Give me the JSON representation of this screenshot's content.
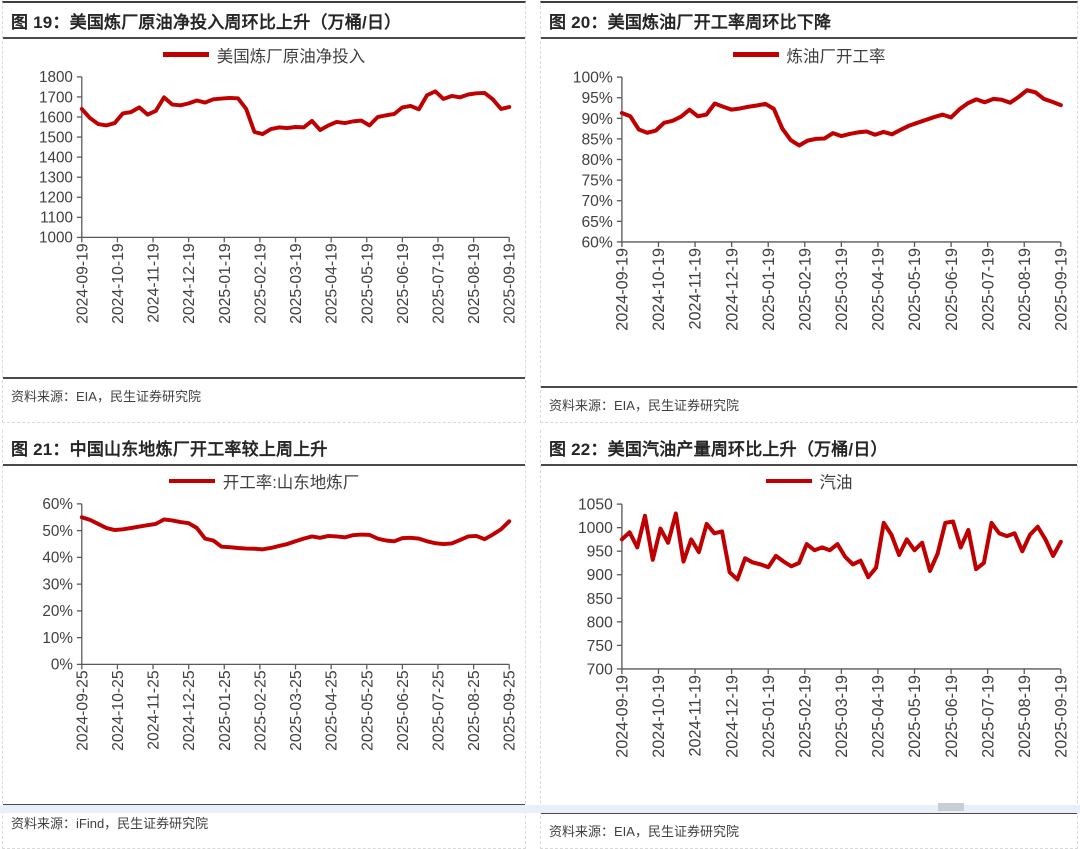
{
  "page": {
    "background": "#ffffff",
    "bottom_strip_color": "#e9eff9"
  },
  "figures": [
    {
      "id": "图 19",
      "title": "图 19：美国炼厂原油净投入周环比上升（万桶/日）",
      "source": "资料来源：EIA，民生证券研究院",
      "chart_data": {
        "type": "line",
        "title": "美国炼厂原油净投入周环比上升（万桶/日）",
        "legend_position": "top",
        "grid": false,
        "axis_color": "#595959",
        "label_color": "#404040",
        "ylim": [
          1000,
          1800
        ],
        "ytick_step": 100,
        "y_format": "number",
        "y_ticks": [
          "1800",
          "1700",
          "1600",
          "1500",
          "1400",
          "1300",
          "1200",
          "1100",
          "1000"
        ],
        "x_tick_labels": [
          "2024-09-19",
          "2024-10-19",
          "2024-11-19",
          "2024-12-19",
          "2025-01-19",
          "2025-02-19",
          "2025-03-19",
          "2025-04-19",
          "2025-05-19",
          "2025-06-19",
          "2025-07-19",
          "2025-08-19",
          "2025-09-19"
        ],
        "series": [
          {
            "name": "美国炼厂原油净投入",
            "color": "#C00000",
            "values": [
              1640,
              1595,
              1565,
              1558,
              1570,
              1618,
              1625,
              1648,
              1612,
              1630,
              1698,
              1662,
              1658,
              1668,
              1682,
              1672,
              1688,
              1692,
              1695,
              1693,
              1640,
              1525,
              1515,
              1540,
              1548,
              1545,
              1550,
              1548,
              1580,
              1535,
              1558,
              1575,
              1570,
              1578,
              1582,
              1558,
              1600,
              1608,
              1615,
              1648,
              1655,
              1638,
              1708,
              1728,
              1690,
              1705,
              1698,
              1712,
              1718,
              1720,
              1688,
              1640,
              1650
            ]
          }
        ]
      }
    },
    {
      "id": "图 20",
      "title": "图 20：美国炼油厂开工率周环比下降",
      "source": "资料来源：EIA，民生证券研究院",
      "chart_data": {
        "type": "line",
        "title": "美国炼油厂开工率周环比下降",
        "legend_position": "top",
        "grid": false,
        "axis_color": "#595959",
        "label_color": "#404040",
        "ylim": [
          60,
          100
        ],
        "ytick_step": 5,
        "y_format": "percent",
        "y_ticks": [
          "100%",
          "95%",
          "90%",
          "85%",
          "80%",
          "75%",
          "70%",
          "65%",
          "60%"
        ],
        "x_tick_labels": [
          "2024-09-19",
          "2024-10-19",
          "2024-11-19",
          "2024-12-19",
          "2025-01-19",
          "2025-02-19",
          "2025-03-19",
          "2025-04-19",
          "2025-05-19",
          "2025-06-19",
          "2025-07-19",
          "2025-08-19",
          "2025-09-19"
        ],
        "series": [
          {
            "name": "炼油厂开工率",
            "color": "#C00000",
            "values": [
              91.3,
              90.5,
              87.3,
              86.5,
              87.0,
              88.9,
              89.4,
              90.4,
              92.1,
              90.5,
              90.9,
              93.6,
              92.8,
              92.1,
              92.4,
              92.8,
              93.1,
              93.5,
              92.3,
              87.5,
              84.7,
              83.4,
              84.6,
              85.0,
              85.1,
              86.4,
              85.7,
              86.2,
              86.6,
              86.8,
              86.0,
              86.7,
              86.1,
              87.2,
              88.2,
              88.9,
              89.6,
              90.3,
              90.9,
              90.2,
              92.2,
              93.7,
              94.6,
              93.9,
              94.7,
              94.5,
              93.8,
              95.2,
              96.8,
              96.3,
              94.7,
              94.0,
              93.2
            ]
          }
        ]
      }
    },
    {
      "id": "图 21",
      "title": "图 21：中国山东地炼厂开工率较上周上升",
      "source": "资料来源：iFind，民生证券研究院",
      "chart_data": {
        "type": "line",
        "title": "中国山东地炼厂开工率较上周上升",
        "legend_position": "top",
        "grid": false,
        "axis_color": "#595959",
        "label_color": "#404040",
        "ylim": [
          0,
          60
        ],
        "ytick_step": 10,
        "y_format": "percent",
        "y_ticks": [
          "60%",
          "50%",
          "40%",
          "30%",
          "20%",
          "10%",
          "0%"
        ],
        "x_tick_labels": [
          "2024-09-25",
          "2024-10-25",
          "2024-11-25",
          "2024-12-25",
          "2025-01-25",
          "2025-02-25",
          "2025-03-25",
          "2025-04-25",
          "2025-05-25",
          "2025-06-25",
          "2025-07-25",
          "2025-08-25",
          "2025-09-25"
        ],
        "series": [
          {
            "name": "开工率:山东地炼厂",
            "color": "#C00000",
            "values": [
              55.0,
              54.0,
              52.5,
              51.0,
              50.2,
              50.5,
              51.0,
              51.5,
              52.0,
              52.5,
              54.2,
              53.8,
              53.2,
              52.8,
              51.0,
              47.0,
              46.3,
              44.0,
              43.8,
              43.5,
              43.3,
              43.2,
              43.0,
              43.5,
              44.3,
              45.0,
              46.0,
              47.0,
              47.8,
              47.3,
              48.0,
              47.8,
              47.5,
              48.3,
              48.5,
              48.4,
              47.0,
              46.3,
              46.0,
              47.2,
              47.3,
              47.0,
              46.0,
              45.3,
              45.0,
              45.2,
              46.5,
              47.8,
              48.0,
              46.8,
              48.5,
              50.5,
              53.5
            ]
          }
        ]
      }
    },
    {
      "id": "图 22",
      "title": "图 22：美国汽油产量周环比上升（万桶/日）",
      "source": "资料来源：EIA，民生证券研究院",
      "chart_data": {
        "type": "line",
        "title": "美国汽油产量周环比上升（万桶/日）",
        "legend_position": "top",
        "grid": false,
        "axis_color": "#595959",
        "label_color": "#404040",
        "ylim": [
          700,
          1050
        ],
        "ytick_step": 50,
        "y_format": "number",
        "y_ticks": [
          "1050",
          "1000",
          "950",
          "900",
          "850",
          "800",
          "750",
          "700"
        ],
        "x_tick_labels": [
          "2024-09-19",
          "2024-10-19",
          "2024-11-19",
          "2024-12-19",
          "2025-01-19",
          "2025-02-19",
          "2025-03-19",
          "2025-04-19",
          "2025-05-19",
          "2025-06-19",
          "2025-07-19",
          "2025-08-19",
          "2025-09-19"
        ],
        "series": [
          {
            "name": "汽油",
            "color": "#C00000",
            "values": [
              975,
              990,
              958,
              1025,
              932,
              998,
              968,
              1030,
              928,
              975,
              948,
              1008,
              988,
              992,
              905,
              890,
              935,
              926,
              922,
              916,
              940,
              928,
              918,
              925,
              965,
              952,
              958,
              952,
              965,
              938,
              922,
              930,
              895,
              915,
              1010,
              985,
              942,
              975,
              952,
              968,
              908,
              945,
              1010,
              1013,
              958,
              995,
              912,
              925,
              1010,
              988,
              982,
              988,
              950,
              985,
              1002,
              975,
              940,
              970
            ]
          }
        ]
      }
    }
  ]
}
